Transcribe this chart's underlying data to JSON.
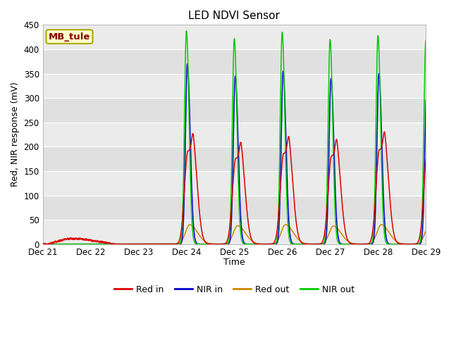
{
  "title": "LED NDVI Sensor",
  "ylabel": "Red, NIR response (mV)",
  "xlabel": "Time",
  "annotation_text": "MB_tule",
  "annotation_color": "#8B0000",
  "annotation_bg": "#FFFFCC",
  "annotation_border": "#AAAA00",
  "ylim": [
    0,
    450
  ],
  "xlim": [
    0,
    8
  ],
  "colors": {
    "red_in": "#DD0000",
    "nir_in": "#0000CC",
    "red_out": "#CC8800",
    "nir_out": "#00CC00"
  },
  "peaks": [
    {
      "day": 3.02,
      "red_in": 190,
      "nir_in": 370,
      "red_out": 40,
      "nir_out": 438
    },
    {
      "day": 4.02,
      "red_in": 175,
      "nir_in": 345,
      "red_out": 38,
      "nir_out": 422
    },
    {
      "day": 5.02,
      "red_in": 185,
      "nir_in": 355,
      "red_out": 40,
      "nir_out": 435
    },
    {
      "day": 6.02,
      "red_in": 180,
      "nir_in": 340,
      "red_out": 37,
      "nir_out": 420
    },
    {
      "day": 7.02,
      "red_in": 193,
      "nir_in": 350,
      "red_out": 40,
      "nir_out": 428
    },
    {
      "day": 8.02,
      "red_in": 190,
      "nir_in": 333,
      "red_out": 37,
      "nir_out": 418
    }
  ],
  "tick_positions": [
    0,
    1,
    2,
    3,
    4,
    5,
    6,
    7,
    8
  ],
  "tick_labels": [
    "Dec 21",
    "Dec 22",
    "Dec 23",
    "Dec 24",
    "Dec 25",
    "Dec 26",
    "Dec 27",
    "Dec 28",
    "Dec 29"
  ],
  "yticks": [
    0,
    50,
    100,
    150,
    200,
    250,
    300,
    350,
    400,
    450
  ],
  "legend_labels": [
    "Red in",
    "NIR in",
    "Red out",
    "NIR out"
  ],
  "band_colors": [
    "#EBEBEB",
    "#E0E0E0"
  ],
  "fig_bg": "#FFFFFF",
  "title_fontsize": 11,
  "axis_fontsize": 9,
  "tick_fontsize": 8.5
}
